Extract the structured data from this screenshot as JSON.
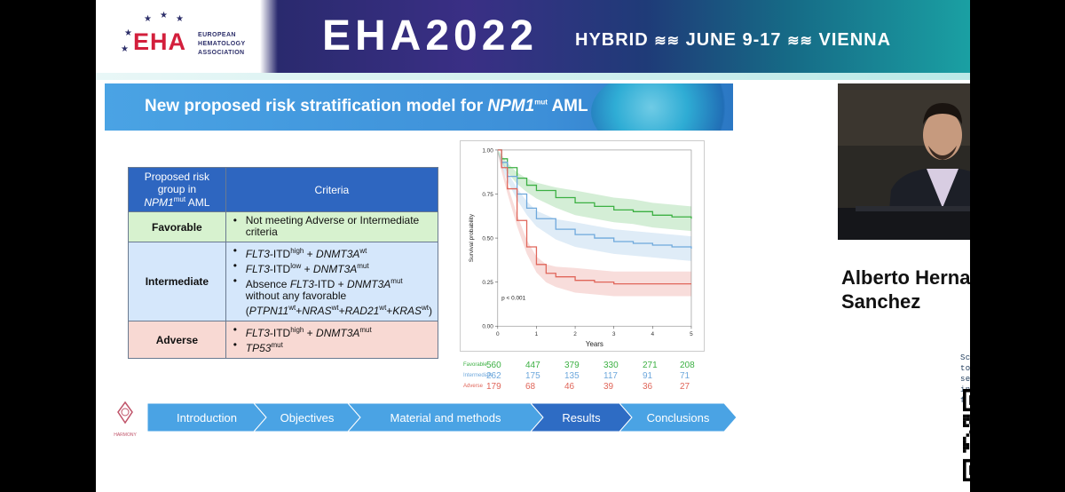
{
  "header": {
    "logo_text": "EHA",
    "logo_sub": [
      "EUROPEAN",
      "HEMATOLOGY",
      "ASSOCIATION"
    ],
    "title": "EHA2022",
    "tagline_parts": [
      "HYBRID",
      "JUNE 9-17",
      "VIENNA"
    ]
  },
  "slide": {
    "title_prefix": "New proposed risk stratification model for ",
    "title_gene": "NPM1",
    "title_sup": "mut",
    "title_suffix": " AML"
  },
  "table": {
    "header_col1_lines": [
      "Proposed risk",
      "group in"
    ],
    "header_col1_gene": "NPM1",
    "header_col1_sup": "mut",
    "header_col1_tail": " AML",
    "header_col2": "Criteria",
    "favorable": {
      "label": "Favorable",
      "item1": "Not meeting Adverse or Intermediate criteria"
    },
    "intermediate": {
      "label": "Intermediate",
      "i1_a": "FLT3",
      "i1_b": "-ITD",
      "i1_sup1": "high",
      "i1_c": " + ",
      "i1_d": "DNMT3A",
      "i1_sup2": "wt",
      "i2_a": "FLT3",
      "i2_b": "-ITD",
      "i2_sup1": "low",
      "i2_c": " + ",
      "i2_d": "DNMT3A",
      "i2_sup2": "mut",
      "i3_a": "Absence ",
      "i3_b": "FLT3",
      "i3_c": "-ITD + ",
      "i3_d": "DNMT3A",
      "i3_sup": "mut",
      "i3_e": " without any favorable",
      "i3_open": "(",
      "i3_g1": "PTPN11",
      "i3_s1": "wt",
      "i3_plus1": "+",
      "i3_g2": "NRAS",
      "i3_s2": "wt",
      "i3_plus2": "+",
      "i3_g3": "RAD21",
      "i3_s3": "wt",
      "i3_plus3": "+",
      "i3_g4": "KRAS",
      "i3_s4": "wt",
      "i3_close": ")"
    },
    "adverse": {
      "label": "Adverse",
      "a1_a": "FLT3",
      "a1_b": "-ITD",
      "a1_sup1": "high",
      "a1_c": " + ",
      "a1_d": "DNMT3A",
      "a1_sup2": "mut",
      "a2_a": "TP53",
      "a2_sup": "mut"
    }
  },
  "chart_data": {
    "type": "line",
    "xlabel": "Years",
    "ylabel": "Survival probability",
    "xlim": [
      0,
      5
    ],
    "ylim": [
      0,
      1
    ],
    "x_ticks": [
      "0",
      "1",
      "2",
      "3",
      "4",
      "5"
    ],
    "y_ticks": [
      "0.00",
      "0.25",
      "0.50",
      "0.75",
      "1.00"
    ],
    "annotation": "p < 0.001",
    "series": [
      {
        "name": "Favorable",
        "color": "#3cb043",
        "x": [
          0,
          0.1,
          0.25,
          0.5,
          0.75,
          1,
          1.5,
          2,
          2.5,
          3,
          3.5,
          4,
          4.5,
          5
        ],
        "values": [
          1.0,
          0.95,
          0.9,
          0.84,
          0.8,
          0.77,
          0.73,
          0.7,
          0.68,
          0.66,
          0.65,
          0.63,
          0.62,
          0.61
        ]
      },
      {
        "name": "Intermediate",
        "color": "#6ea8dc",
        "x": [
          0,
          0.1,
          0.25,
          0.5,
          0.75,
          1,
          1.5,
          2,
          2.5,
          3,
          3.5,
          4,
          4.5,
          5
        ],
        "values": [
          1.0,
          0.93,
          0.85,
          0.75,
          0.67,
          0.61,
          0.55,
          0.52,
          0.5,
          0.48,
          0.47,
          0.46,
          0.45,
          0.44
        ]
      },
      {
        "name": "Adverse",
        "color": "#e0665a",
        "x": [
          0,
          0.1,
          0.25,
          0.5,
          0.75,
          1,
          1.25,
          1.5,
          2,
          2.5,
          3,
          3.5,
          4,
          4.5,
          5
        ],
        "values": [
          1.0,
          0.9,
          0.78,
          0.6,
          0.45,
          0.35,
          0.3,
          0.28,
          0.26,
          0.25,
          0.24,
          0.24,
          0.24,
          0.24,
          0.24
        ]
      }
    ],
    "risk_table": {
      "Favorable": [
        560,
        447,
        379,
        330,
        271,
        208
      ],
      "Intermediate": [
        262,
        175,
        135,
        117,
        91,
        71
      ],
      "Adverse": [
        179,
        68,
        46,
        39,
        36,
        27
      ]
    }
  },
  "nav": {
    "steps": [
      "Introduction",
      "Objectives",
      "Material and methods",
      "Results",
      "Conclusions"
    ],
    "active_index": 3,
    "color_inactive": "#4aa3e4",
    "color_active": "#2e6cc4",
    "logo_label": "HARMONY"
  },
  "speaker": {
    "name": "Alberto Hernandez-Sanchez"
  },
  "qr": {
    "text": "Scan the QR code to access the session interactivity features"
  }
}
